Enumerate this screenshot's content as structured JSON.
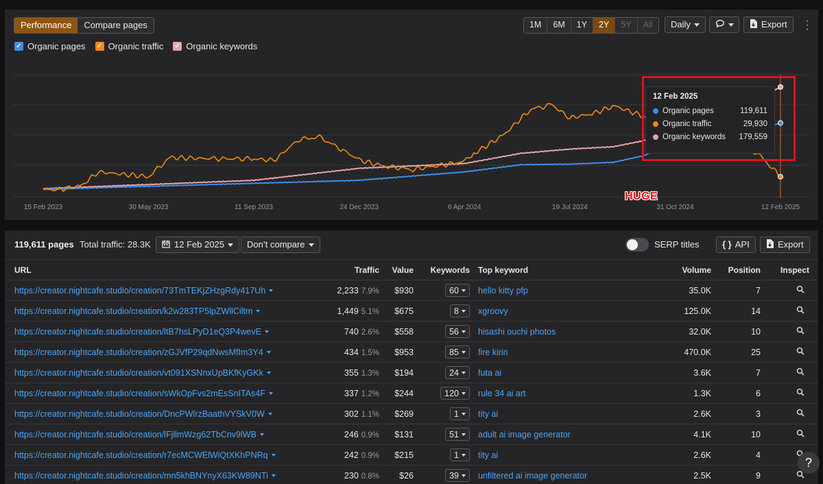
{
  "header": {
    "tabs": [
      {
        "label": "Performance",
        "active": true
      },
      {
        "label": "Compare pages",
        "active": false
      }
    ],
    "time_ranges": [
      {
        "label": "1M",
        "state": "normal"
      },
      {
        "label": "6M",
        "state": "normal"
      },
      {
        "label": "1Y",
        "state": "normal"
      },
      {
        "label": "2Y",
        "state": "selected"
      },
      {
        "label": "5Y",
        "state": "disabled"
      },
      {
        "label": "All",
        "state": "disabled"
      }
    ],
    "interval_label": "Daily",
    "export_label": "Export",
    "more_icon": "vertical-dots-icon",
    "comment_icon": "speech-bubble-icon"
  },
  "legend": [
    {
      "label": "Organic pages",
      "color": "#3d8ee8",
      "checked": true
    },
    {
      "label": "Organic traffic",
      "color": "#f08a12",
      "checked": true
    },
    {
      "label": "Organic keywords",
      "color": "#e7a5a9",
      "checked": true
    }
  ],
  "chart_data": {
    "type": "line",
    "x_ticks": [
      "15 Feb 2023",
      "30 May 2023",
      "11 Sep 2023",
      "24 Dec 2023",
      "6 Apr 2024",
      "19 Jul 2024",
      "31 Oct 2024",
      "12 Feb 2025"
    ],
    "x_range": [
      "15 Feb 2023",
      "12 Feb 2025"
    ],
    "grid": true,
    "series": [
      {
        "name": "Organic pages",
        "color": "#3d8ee8",
        "points": [
          [
            "15 Feb 2023",
            9000
          ],
          [
            "30 May 2023",
            14000
          ],
          [
            "11 Sep 2023",
            19000
          ],
          [
            "24 Dec 2023",
            24000
          ],
          [
            "6 Apr 2024",
            38000
          ],
          [
            "1 Jun 2024",
            50000
          ],
          [
            "19 Jul 2024",
            51000
          ],
          [
            "31 Aug 2024",
            54000
          ],
          [
            "30 Sep 2024",
            65000
          ],
          [
            "31 Oct 2024",
            90000
          ],
          [
            "15 Dec 2024",
            97000
          ],
          [
            "20 Jan 2025",
            106000
          ],
          [
            "12 Feb 2025",
            119611
          ]
        ]
      },
      {
        "name": "Organic traffic",
        "color": "#f08a12",
        "points": [
          [
            "15 Feb 2023",
            9000
          ],
          [
            "1 Mar 2023",
            8000
          ],
          [
            "25 Mar 2023",
            15000
          ],
          [
            "10 Apr 2023",
            38000
          ],
          [
            "30 May 2023",
            30000
          ],
          [
            "20 Jun 2023",
            62000
          ],
          [
            "1 Aug 2023",
            60000
          ],
          [
            "11 Sep 2023",
            60000
          ],
          [
            "1 Oct 2023",
            57000
          ],
          [
            "25 Oct 2023",
            92000
          ],
          [
            "15 Nov 2023",
            96000
          ],
          [
            "10 Dec 2023",
            72000
          ],
          [
            "24 Dec 2023",
            58000
          ],
          [
            "15 Jan 2024",
            48000
          ],
          [
            "15 Feb 2024",
            42000
          ],
          [
            "6 Apr 2024",
            55000
          ],
          [
            "15 Apr 2024",
            68000
          ],
          [
            "15 May 2024",
            100000
          ],
          [
            "10 Jun 2024",
            142000
          ],
          [
            "1 Jul 2024",
            150000
          ],
          [
            "19 Jul 2024",
            128000
          ],
          [
            "10 Aug 2024",
            135000
          ],
          [
            "1 Sep 2024",
            148000
          ],
          [
            "1 Oct 2024",
            130000
          ],
          [
            "31 Oct 2024",
            130000
          ],
          [
            "15 Dec 2024",
            120000
          ],
          [
            "1 Jan 2025",
            78000
          ],
          [
            "20 Jan 2025",
            70000
          ],
          [
            "12 Feb 2025",
            29930
          ]
        ]
      },
      {
        "name": "Organic keywords",
        "color": "#e7a5a9",
        "points": [
          [
            "15 Feb 2023",
            10000
          ],
          [
            "30 May 2023",
            17000
          ],
          [
            "11 Sep 2023",
            24000
          ],
          [
            "24 Dec 2023",
            44000
          ],
          [
            "6 Apr 2024",
            52000
          ],
          [
            "1 Jun 2024",
            69000
          ],
          [
            "19 Jul 2024",
            76000
          ],
          [
            "31 Aug 2024",
            80000
          ],
          [
            "30 Sep 2024",
            90000
          ],
          [
            "31 Oct 2024",
            115000
          ],
          [
            "15 Dec 2024",
            145000
          ],
          [
            "20 Jan 2025",
            158000
          ],
          [
            "12 Feb 2025",
            179559
          ]
        ]
      }
    ],
    "tooltip": {
      "date": "12 Feb 2025",
      "rows": [
        {
          "label": "Organic pages",
          "value": "119,611",
          "color": "#3d8ee8"
        },
        {
          "label": "Organic traffic",
          "value": "29,930",
          "color": "#f08a12"
        },
        {
          "label": "Organic keywords",
          "value": "179,559",
          "color": "#e7a5a9"
        }
      ]
    }
  },
  "annotation": {
    "text": "HUGE",
    "color": "#e3121b"
  },
  "table_toolbar": {
    "pages_count": "119,611 pages",
    "total_traffic": "Total traffic: 28.3K",
    "date_label": "12 Feb 2025",
    "compare_label": "Don’t compare",
    "serp_titles_label": "SERP titles",
    "serp_titles_on": false,
    "api_label": "API",
    "export_label": "Export"
  },
  "table": {
    "columns": [
      "URL",
      "Traffic",
      "Value",
      "Keywords",
      "Top keyword",
      "Volume",
      "Position",
      "Inspect"
    ],
    "rows": [
      {
        "url": "https://creator.nightcafe.studio/creation/73TmTEKjZHzgRdy417Uh",
        "traffic": "2,233",
        "share": "7.9%",
        "value": "$930",
        "keywords": "60",
        "top_keyword": "hello kitty pfp",
        "volume": "35.0K",
        "position": "7"
      },
      {
        "url": "https://creator.nightcafe.studio/creation/k2w283TP5lpZWllCiltm",
        "traffic": "1,449",
        "share": "5.1%",
        "value": "$675",
        "keywords": "8",
        "top_keyword": "xgroovy",
        "volume": "125.0K",
        "position": "14"
      },
      {
        "url": "https://creator.nightcafe.studio/creation/ltB7hsLPyD1eQ3P4wevE",
        "traffic": "740",
        "share": "2.6%",
        "value": "$558",
        "keywords": "56",
        "top_keyword": "hisashi ouchi photos",
        "volume": "32.0K",
        "position": "10"
      },
      {
        "url": "https://creator.nightcafe.studio/creation/zGJVfP29qdNwsMfIm3Y4",
        "traffic": "434",
        "share": "1.5%",
        "value": "$953",
        "keywords": "85",
        "top_keyword": "fire kirin",
        "volume": "470.0K",
        "position": "25"
      },
      {
        "url": "https://creator.nightcafe.studio/creation/vt091XSNnxUpBKfKyGKk",
        "traffic": "355",
        "share": "1.3%",
        "value": "$194",
        "keywords": "24",
        "top_keyword": "futa ai",
        "volume": "3.6K",
        "position": "7"
      },
      {
        "url": "https://creator.nightcafe.studio/creation/sWkOpFvs2mEsSnITAs4F",
        "traffic": "337",
        "share": "1.2%",
        "value": "$244",
        "keywords": "120",
        "top_keyword": "rule 34 ai art",
        "volume": "1.3K",
        "position": "6"
      },
      {
        "url": "https://creator.nightcafe.studio/creation/DncPWlrzBaathVYSkV0W",
        "traffic": "302",
        "share": "1.1%",
        "value": "$269",
        "keywords": "1",
        "top_keyword": "tity ai",
        "volume": "2.6K",
        "position": "3"
      },
      {
        "url": "https://creator.nightcafe.studio/creation/lFjllmWzg62TbCnv9lWB",
        "traffic": "246",
        "share": "0.9%",
        "value": "$131",
        "keywords": "51",
        "top_keyword": "adult ai image generator",
        "volume": "4.1K",
        "position": "10"
      },
      {
        "url": "https://creator.nightcafe.studio/creation/r7ecMCWElWiQtXKhPNRq",
        "traffic": "242",
        "share": "0.9%",
        "value": "$215",
        "keywords": "1",
        "top_keyword": "tity ai",
        "volume": "2.6K",
        "position": "4"
      },
      {
        "url": "https://creator.nightcafe.studio/creation/mn5khBNYnyX63KW89NTi",
        "traffic": "230",
        "share": "0.8%",
        "value": "$26",
        "keywords": "39",
        "top_keyword": "unfiltered ai image generator",
        "volume": "2.5K",
        "position": "9"
      }
    ]
  },
  "help_label": "?"
}
